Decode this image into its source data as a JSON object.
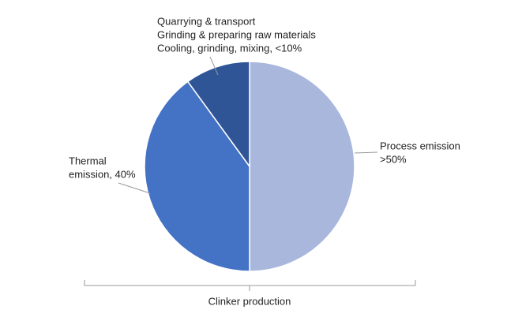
{
  "chart_data": {
    "type": "pie",
    "values": [
      50,
      40,
      10
    ],
    "value_labels": [
      [
        "Process emission",
        ">50%"
      ],
      [
        "Thermal",
        "emission, 40%"
      ],
      [
        "Quarrying & transport",
        "Grinding & preparing raw materials",
        "Cooling, grinding, mixing, <10%"
      ]
    ],
    "colors": [
      "#a9b7dd",
      "#4472c4",
      "#2f5597"
    ],
    "bracket_label": "Clinker production"
  }
}
